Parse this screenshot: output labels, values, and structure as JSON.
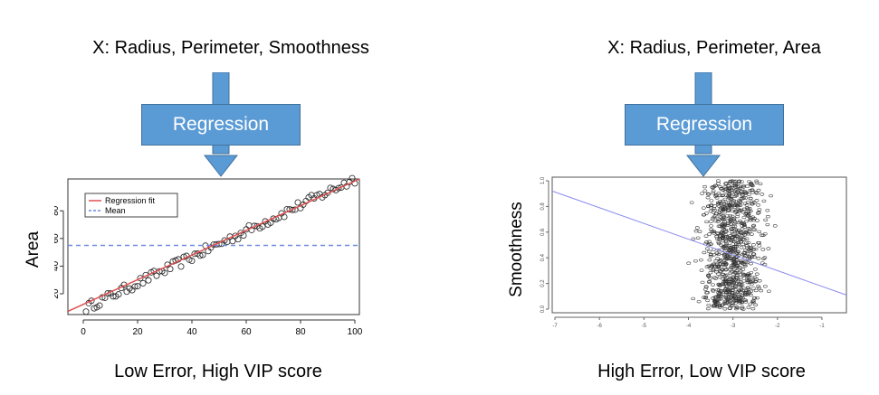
{
  "left": {
    "input_label": "X: Radius, Perimeter, Smoothness",
    "box_label": "Regression",
    "output_label": "Low Error, High VIP score",
    "plot": {
      "ylabel": "Area",
      "x_ticks": [
        "0",
        "20",
        "40",
        "60",
        "80",
        "100"
      ],
      "y_ticks": [
        "20",
        "40",
        "60",
        "80"
      ],
      "legend": [
        {
          "label": "Regression fit",
          "color": "#e05050",
          "style": "solid"
        },
        {
          "label": "Mean",
          "color": "#6f8ae0",
          "style": "dashed"
        }
      ]
    }
  },
  "right": {
    "input_label": "X: Radius, Perimeter, Area",
    "box_label": "Regression",
    "output_label": "High Error, Low VIP score",
    "plot": {
      "ylabel": "Smoothness",
      "x_ticks": [
        "-7",
        "-6",
        "-5",
        "-4",
        "-3",
        "-2",
        "-1"
      ],
      "y_ticks": [
        "0.0",
        "0.2",
        "0.4",
        "0.6",
        "0.8",
        "1.0"
      ]
    }
  },
  "colors": {
    "box_fill": "#5b9bd5",
    "box_border": "#41719c",
    "fit_line": "#e05050",
    "mean_line": "#6f8ae0",
    "right_fit": "#8c8cf0"
  },
  "chart_data": [
    {
      "type": "scatter",
      "ylabel": "Area",
      "xlim": [
        0,
        100
      ],
      "ylim": [
        5,
        103
      ],
      "x_ticks": [
        0,
        20,
        40,
        60,
        80,
        100
      ],
      "y_ticks": [
        20,
        40,
        60,
        80
      ],
      "regression_fit": {
        "x": [
          -2,
          102
        ],
        "y": [
          6,
          104
        ]
      },
      "mean": 55,
      "legend": [
        "Regression fit",
        "Mean"
      ]
    },
    {
      "type": "scatter",
      "ylabel": "Smoothness",
      "xlim": [
        -7,
        -0.5
      ],
      "ylim": [
        0,
        1
      ],
      "x_ticks": [
        -7,
        -6,
        -5,
        -4,
        -3,
        -2,
        -1
      ],
      "y_ticks": [
        0.0,
        0.2,
        0.4,
        0.6,
        0.8,
        1.0
      ],
      "regression_fit": {
        "x": [
          -7,
          -0.5
        ],
        "y": [
          0.92,
          0.11
        ]
      }
    }
  ]
}
